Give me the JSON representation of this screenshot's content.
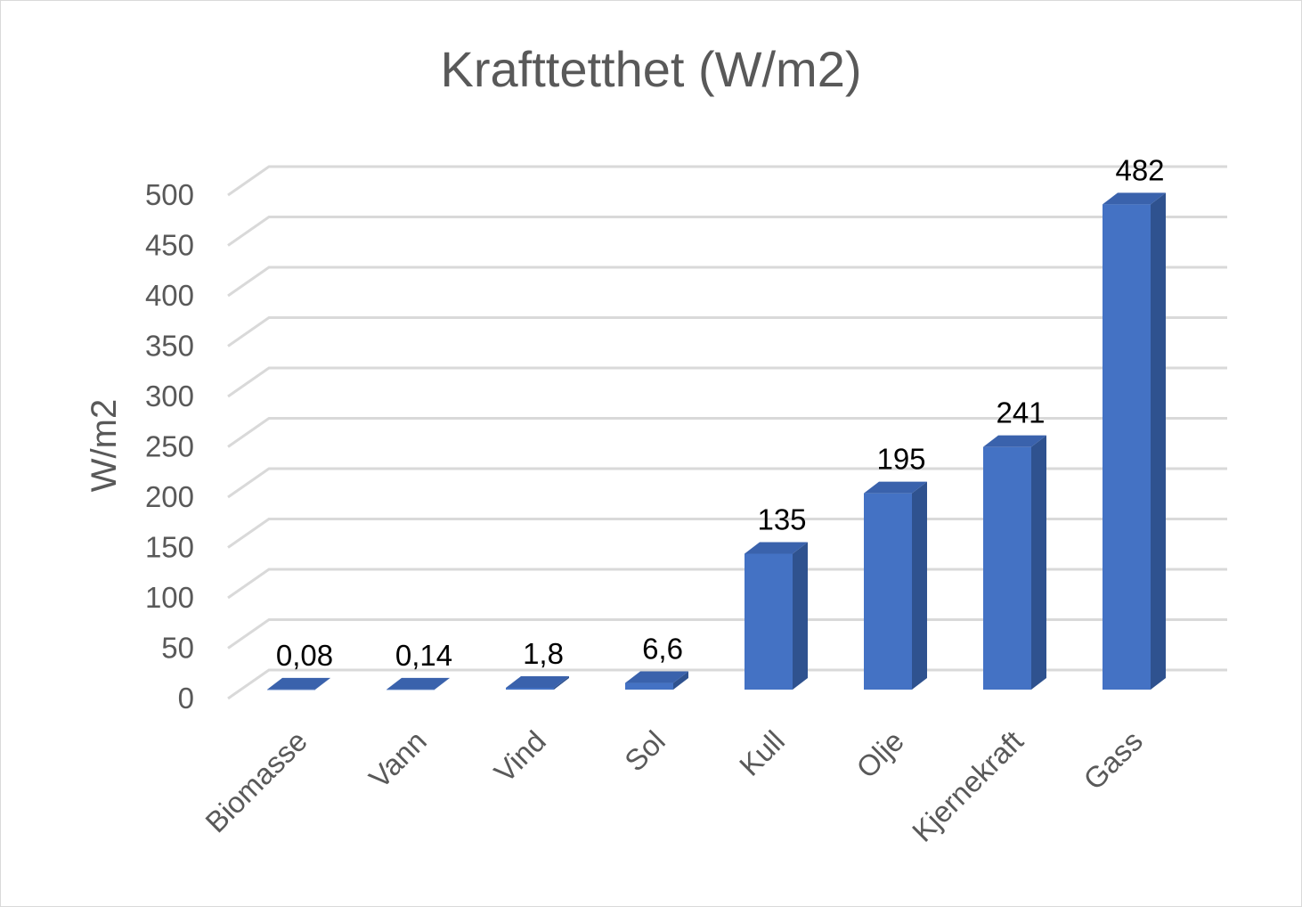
{
  "chart_data": {
    "type": "bar",
    "title": "Krafttetthet (W/m2)",
    "xlabel": "",
    "ylabel": "W/m2",
    "ylim": [
      0,
      500
    ],
    "yticks": [
      0,
      50,
      100,
      150,
      200,
      250,
      300,
      350,
      400,
      450,
      500
    ],
    "grid": true,
    "style": "3d-column",
    "categories": [
      "Biomasse",
      "Vann",
      "Vind",
      "Sol",
      "Kull",
      "Olje",
      "Kjernekraft",
      "Gass"
    ],
    "values": [
      0.08,
      0.14,
      1.8,
      6.6,
      135,
      195,
      241,
      482
    ],
    "data_labels": [
      "0,08",
      "0,14",
      "1,8",
      "6,6",
      "135",
      "195",
      "241",
      "482"
    ],
    "colors": {
      "bar_front": "#4472c4",
      "bar_side": "#2f528f",
      "bar_top": "#3a62ac",
      "gridline": "#d9d9d9",
      "text": "#595959",
      "data_label": "#000000"
    }
  }
}
